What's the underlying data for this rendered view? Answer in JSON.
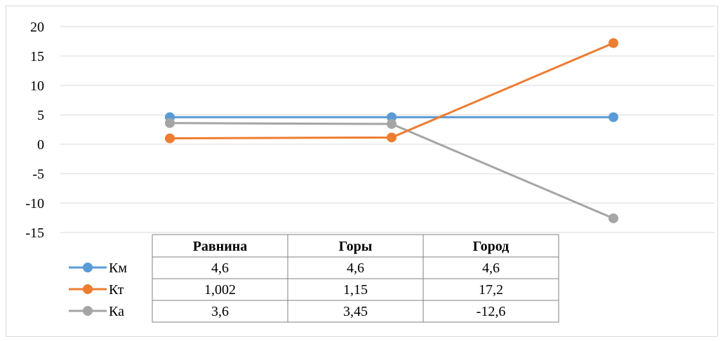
{
  "chart_data": {
    "type": "line",
    "title": "",
    "xlabel": "",
    "ylabel": "",
    "categories": [
      "Равнина",
      "Горы",
      "Город"
    ],
    "ylim": [
      -15,
      20
    ],
    "yticks": [
      20,
      15,
      10,
      5,
      0,
      -5,
      -10,
      -15
    ],
    "grid": true,
    "legend": "left of data table",
    "data_table": true,
    "series": [
      {
        "name": "Км",
        "color": "#5B9BD5",
        "values": [
          4.6,
          4.6,
          4.6
        ],
        "labels": [
          "4,6",
          "4,6",
          "4,6"
        ]
      },
      {
        "name": "Кт",
        "color": "#ED7D31",
        "values": [
          1.002,
          1.15,
          17.2
        ],
        "labels": [
          "1,002",
          "1,15",
          "17,2"
        ]
      },
      {
        "name": "Ка",
        "color": "#A5A5A5",
        "values": [
          3.6,
          3.45,
          -12.6
        ],
        "labels": [
          "3,6",
          "3,45",
          "-12,6"
        ]
      }
    ]
  }
}
